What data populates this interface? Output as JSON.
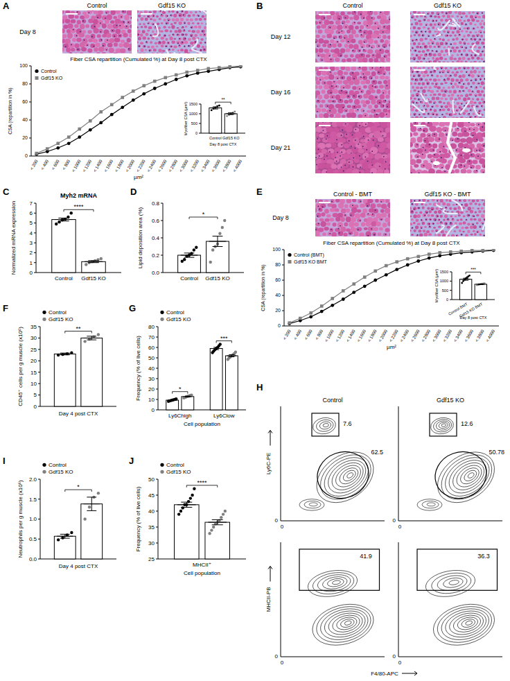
{
  "chart_data": [
    {
      "type": "line",
      "title": "Fiber CSA repartition (Cumulated %) at Day 8 post CTX",
      "x_label": "µm²",
      "y_label": "CSA (repartition in %)",
      "categories": [
        "< 200",
        "< 400",
        "< 600",
        "< 800",
        "< 1000",
        "< 1200",
        "< 1400",
        "< 1600",
        "< 1800",
        "< 2000",
        "< 2200",
        "< 2400",
        "< 2600",
        "< 2800",
        "< 3000",
        "< 3200",
        "< 3400",
        "< 3600",
        "< 3800",
        "< 4000"
      ],
      "series": [
        {
          "name": "Control",
          "color": "#000000",
          "marker": "circle",
          "values": [
            2,
            5,
            9,
            14,
            21,
            29,
            37,
            46,
            54,
            62,
            69,
            75,
            80,
            85,
            89,
            92,
            94,
            96,
            98,
            99
          ]
        },
        {
          "name": "Gdf15 KO",
          "color": "#808080",
          "marker": "square",
          "values": [
            3,
            8,
            14,
            21,
            30,
            39,
            49,
            57,
            65,
            72,
            78,
            83,
            87,
            90,
            93,
            95,
            97,
            98,
            99,
            100
          ]
        }
      ],
      "ylim": [
        0,
        100
      ],
      "yticks": [
        0,
        20,
        40,
        60,
        80,
        100
      ],
      "legend": "upper left"
    },
    {
      "type": "bar",
      "y_label": "Myofiber CSA (µm²)",
      "x_label": "Day 8 post CTX",
      "categories": [
        null
      ],
      "series": [
        {
          "name": "Control",
          "color": "#000000",
          "values": [
            1300
          ],
          "errors": [
            55
          ],
          "points": [
            [
              1180,
              1260,
              1320,
              1390,
              1420
            ]
          ]
        },
        {
          "name": "Gdf15 KO",
          "color": "#808080",
          "values": [
            1000
          ],
          "errors": [
            45
          ],
          "points": [
            [
              880,
              940,
              1000,
              1060,
              1110
            ]
          ]
        }
      ],
      "ylim": [
        0,
        1500
      ],
      "yticks": [
        0,
        500,
        1000,
        1500
      ],
      "annotations": [
        "**"
      ]
    },
    {
      "type": "bar",
      "title": "Myh2 mRNA",
      "y_label": "Normalized mRNA expression",
      "categories": [
        null
      ],
      "series": [
        {
          "name": "Control",
          "color": "#000000",
          "values": [
            5.35
          ],
          "errors": [
            0.15
          ],
          "points": [
            [
              4.9,
              5.1,
              5.3,
              5.4,
              5.6,
              6.0
            ]
          ]
        },
        {
          "name": "Gdf15 KO",
          "color": "#808080",
          "values": [
            1.1
          ],
          "errors": [
            0.1
          ],
          "points": [
            [
              0.8,
              1.0,
              1.1,
              1.2,
              1.3,
              1.4
            ]
          ]
        }
      ],
      "ylim": [
        0,
        7
      ],
      "yticks": [
        0,
        1,
        2,
        3,
        4,
        5,
        6,
        7
      ],
      "annotations": [
        "****"
      ]
    },
    {
      "type": "bar",
      "y_label": "Lipid deposition area (%)",
      "categories": [
        null
      ],
      "series": [
        {
          "name": "Control",
          "color": "#000000",
          "values": [
            0.2
          ],
          "errors": [
            0.025
          ],
          "points": [
            [
              0.13,
              0.15,
              0.19,
              0.2,
              0.22,
              0.26,
              0.29
            ]
          ]
        },
        {
          "name": "Gdf15 KO",
          "color": "#808080",
          "values": [
            0.36
          ],
          "errors": [
            0.06
          ],
          "points": [
            [
              0.12,
              0.26,
              0.3,
              0.33,
              0.45,
              0.52,
              0.6
            ]
          ]
        }
      ],
      "ylim": [
        0,
        0.8
      ],
      "yticks": [
        {
          "value": 0,
          "label": "0.0"
        },
        0.2,
        0.4,
        0.6,
        0.8
      ],
      "annotations": [
        "*"
      ]
    },
    {
      "type": "line",
      "title": "Fiber CSA repartition (Cumulated %) at Day 8 post CTX",
      "x_label": "µm²",
      "y_label": "CSA (repartition in %)",
      "categories": [
        "< 200",
        "< 400",
        "< 600",
        "< 800",
        "< 1000",
        "< 1200",
        "< 1400",
        "< 1600",
        "< 1800",
        "< 2000",
        "< 2200",
        "< 2400",
        "< 2600",
        "< 2800",
        "< 3000",
        "< 3200",
        "< 3400",
        "< 3600",
        "< 3800",
        "< 4000"
      ],
      "series": [
        {
          "name": "Control (BMT)",
          "color": "#000000",
          "marker": "circle",
          "values": [
            3,
            7,
            12,
            19,
            27,
            35,
            44,
            52,
            60,
            67,
            74,
            80,
            85,
            89,
            92,
            94,
            96,
            97,
            98,
            99
          ]
        },
        {
          "name": "Gdf15 KO BMT",
          "color": "#808080",
          "marker": "square",
          "values": [
            4,
            10,
            17,
            26,
            36,
            46,
            55,
            64,
            72,
            79,
            84,
            88,
            91,
            94,
            96,
            97,
            98,
            99,
            99,
            100
          ]
        }
      ],
      "ylim": [
        0,
        100
      ],
      "yticks": [
        0,
        20,
        40,
        60,
        80,
        100
      ],
      "legend": "upper left"
    },
    {
      "type": "bar",
      "y_label": "Myofiber CSA (µm²)",
      "x_label": "Day 8 post CTX",
      "categories": [
        null
      ],
      "series": [
        {
          "name": "Control BMT",
          "color": "#000000",
          "values": [
            1100
          ],
          "errors": [
            55
          ],
          "points": [
            [
              900,
              1000,
              1080,
              1150,
              1200,
              1250,
              1300
            ]
          ]
        },
        {
          "name": "Gdf15 KO BMT",
          "color": "#808080",
          "values": [
            830
          ],
          "errors": [
            20
          ],
          "points": [
            [
              780,
              800,
              820,
              840,
              860,
              870,
              880
            ]
          ]
        }
      ],
      "ylim": [
        0,
        1500
      ],
      "yticks": [
        0,
        500,
        1000,
        1500
      ],
      "annotations": [
        "***"
      ]
    },
    {
      "type": "bar",
      "y_label": "CD45⁺ cells per g muscle (x10⁶)",
      "x_label": "Day 4 post CTX",
      "categories": [
        null
      ],
      "series": [
        {
          "name": "Control",
          "color": "#000000",
          "values": [
            23
          ],
          "errors": [
            0.4
          ],
          "points": [
            [
              22.5,
              22.8,
              23.1,
              23.5
            ]
          ]
        },
        {
          "name": "Gdf15 KO",
          "color": "#808080",
          "values": [
            30
          ],
          "errors": [
            0.8
          ],
          "points": [
            [
              28.5,
              29.5,
              30.5,
              31.5
            ]
          ]
        }
      ],
      "ylim": [
        0,
        35
      ],
      "yticks": [
        0,
        5,
        10,
        15,
        20,
        25,
        30,
        35
      ],
      "legend": "upper left",
      "annotations": [
        "**"
      ]
    },
    {
      "type": "bar",
      "y_label": "Frequency (% of live cells)",
      "x_label": "Cell population",
      "categories": [
        "Ly6Chigh",
        "Ly6Clow"
      ],
      "series": [
        {
          "name": "Control",
          "color": "#000000",
          "values": [
            9.3,
            59
          ],
          "errors": [
            0.3,
            1.1
          ],
          "points": [
            [
              8.2,
              8.6,
              9,
              9.3,
              9.7,
              10.1,
              10.5
            ],
            [
              55,
              56.5,
              58,
              59,
              60,
              61.5,
              63
            ]
          ]
        },
        {
          "name": "Gdf15 KO",
          "color": "#808080",
          "values": [
            12.8,
            52
          ],
          "errors": [
            0.4,
            1.0
          ],
          "points": [
            [
              11.5,
              12,
              12.5,
              13,
              13.3,
              13.8,
              14.2
            ],
            [
              48.5,
              50,
              51,
              52,
              53,
              54,
              55.5
            ]
          ]
        }
      ],
      "ylim": [
        0,
        80
      ],
      "yticks": [
        0,
        10,
        20,
        30,
        40,
        50,
        60,
        70,
        80
      ],
      "legend": "upper left",
      "annotations": [
        "*",
        "***"
      ]
    },
    {
      "type": "bar",
      "y_label": "Neutrophils per g muscle (x10⁶)",
      "x_label": "Day 4 post CTX",
      "categories": [
        null
      ],
      "series": [
        {
          "name": "Control",
          "color": "#000000",
          "values": [
            0.57
          ],
          "errors": [
            0.05
          ],
          "points": [
            [
              0.48,
              0.53,
              0.6,
              0.66
            ]
          ]
        },
        {
          "name": "Gdf15 KO",
          "color": "#808080",
          "values": [
            1.38
          ],
          "errors": [
            0.17
          ],
          "points": [
            [
              1.0,
              1.3,
              1.55,
              1.65
            ]
          ]
        }
      ],
      "ylim": [
        0,
        2
      ],
      "yticks": [
        {
          "value": 0,
          "label": "0.0"
        },
        0.5,
        {
          "value": 1,
          "label": "1.0"
        },
        1.5,
        {
          "value": 2,
          "label": "2.0"
        }
      ],
      "legend": "upper left",
      "annotations": [
        "*"
      ]
    },
    {
      "type": "bar",
      "y_label": "Frequency (% of live cells)",
      "x_label": "Cell population",
      "categories": [
        "MHCII⁺"
      ],
      "series": [
        {
          "name": "Control",
          "color": "#000000",
          "values": [
            42
          ],
          "errors": [
            0.8
          ],
          "points": [
            [
              39,
              40,
              41,
              42,
              42,
              43,
              44,
              45,
              47
            ]
          ]
        },
        {
          "name": "Gdf15 KO",
          "color": "#808080",
          "values": [
            36.5
          ],
          "errors": [
            0.8
          ],
          "points": [
            [
              33,
              34,
              35,
              36,
              36.5,
              37,
              38,
              39,
              40
            ]
          ]
        }
      ],
      "ylim": [
        25,
        50
      ],
      "yticks": [
        25,
        30,
        35,
        40,
        45,
        50
      ],
      "legend": "upper left",
      "annotations": [
        "****"
      ]
    }
  ],
  "figure": {
    "panel_labels": [
      "A",
      "B",
      "C",
      "D",
      "E",
      "F",
      "G",
      "H",
      "I",
      "J"
    ],
    "histology": [
      {
        "columns": [
          "Control",
          "Gdf15 KO"
        ],
        "rows": [
          "Day 8"
        ]
      },
      {
        "columns": [
          "Control",
          "Gdf15 KO"
        ],
        "rows": [
          "Day 12",
          "Day 16",
          "Day 21"
        ]
      },
      {
        "columns": [
          "Control - BMT",
          "Gdf15 KO - BMT"
        ],
        "rows": [
          "Day 8"
        ]
      }
    ],
    "flow": {
      "columns": [
        "Control",
        "Gdf15 KO"
      ],
      "x_label": "F4/80-APC",
      "axis_zero": 0,
      "rows": [
        {
          "y_label": "Ly6C-PE",
          "gates": [
            [
              7.6,
              62.5
            ],
            [
              12.6,
              50.78
            ]
          ]
        },
        {
          "y_label": "MHCII-PB",
          "gates": [
            [
              41.9
            ],
            [
              36.3
            ]
          ]
        }
      ]
    }
  }
}
